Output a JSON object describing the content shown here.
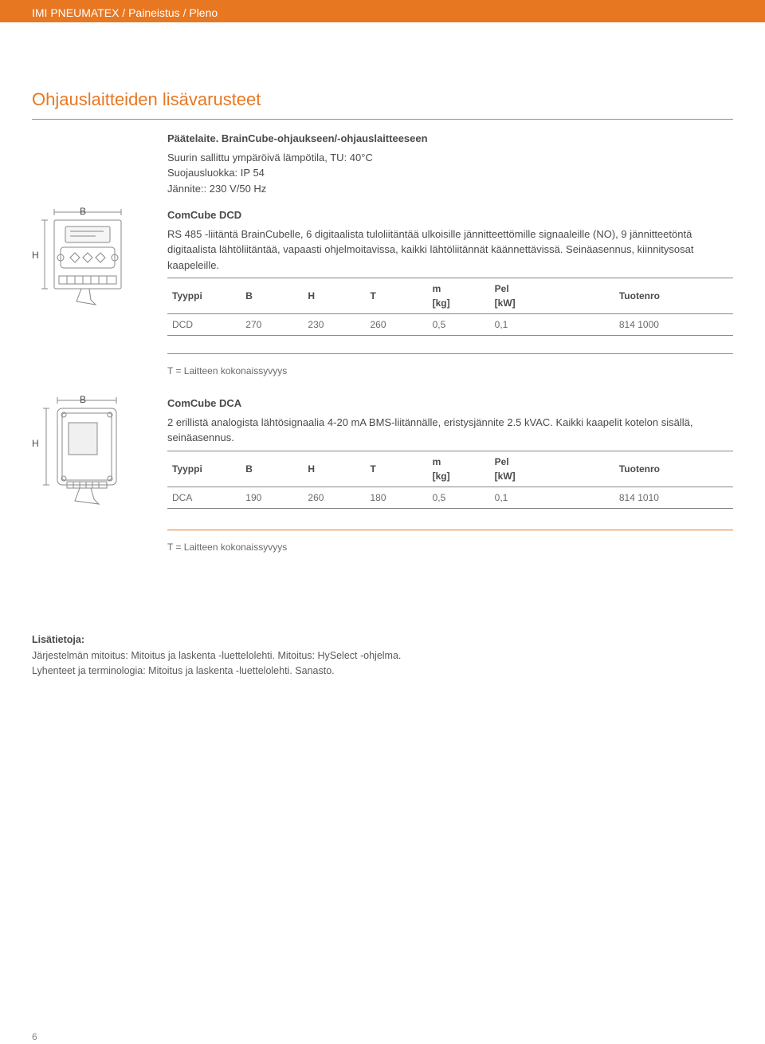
{
  "header": {
    "breadcrumb": "IMI PNEUMATEX / Paineistus / Pleno"
  },
  "section_title": "Ohjauslaitteiden lisävarusteet",
  "intro": {
    "title": "Päätelaite. BrainCube-ohjaukseen/-ohjauslaitteeseen",
    "line1": "Suurin sallittu ympäröivä lämpötila, TU: 40°C",
    "line2": "Suojausluokka: IP 54",
    "line3": "Jännite:: 230 V/50 Hz"
  },
  "dcd": {
    "title": "ComCube DCD",
    "desc": "RS 485 -liitäntä BrainCubelle, 6 digitaalista tuloliitäntää ulkoisille jännitteettömille signaaleille (NO), 9 jännitteetöntä digitaalista lähtöliitäntää, vapaasti ohjelmoitavissa, kaikki lähtöliitännät käännettävissä. Seinäasennus, kiinnitysosat kaapeleille.",
    "table": {
      "columns": [
        "Tyyppi",
        "B",
        "H",
        "T",
        "m\n[kg]",
        "Pel\n[kW]",
        "Tuotenro"
      ],
      "rows": [
        [
          "DCD",
          "270",
          "230",
          "260",
          "0,5",
          "0,1",
          "814 1000"
        ]
      ]
    },
    "footnote": "T = Laitteen kokonaissyvyys"
  },
  "dca": {
    "title": "ComCube DCA",
    "desc": "2 erillistä analogista lähtösignaalia 4-20 mA BMS-liitännälle, eristysjännite 2.5 kVAC. Kaikki kaapelit kotelon sisällä, seinäasennus.",
    "table": {
      "columns": [
        "Tyyppi",
        "B",
        "H",
        "T",
        "m\n[kg]",
        "Pel\n[kW]",
        "Tuotenro"
      ],
      "rows": [
        [
          "DCA",
          "190",
          "260",
          "180",
          "0,5",
          "0,1",
          "814 1010"
        ]
      ]
    },
    "footnote": "T = Laitteen kokonaissyvyys"
  },
  "info": {
    "title": "Lisätietoja:",
    "line1": "Järjestelmän mitoitus: Mitoitus ja laskenta -luettelolehti. Mitoitus: HySelect -ohjelma.",
    "line2": "Lyhenteet ja terminologia: Mitoitus ja laskenta -luettelolehti. Sanasto."
  },
  "dim_labels": {
    "B": "B",
    "H": "H"
  },
  "page_number": "6",
  "col_widths": [
    "13%",
    "11%",
    "11%",
    "11%",
    "11%",
    "22%",
    "21%"
  ],
  "colors": {
    "accent": "#e87722",
    "text": "#4a4a4a",
    "text_light": "#6a6a6a",
    "border": "#888888"
  }
}
